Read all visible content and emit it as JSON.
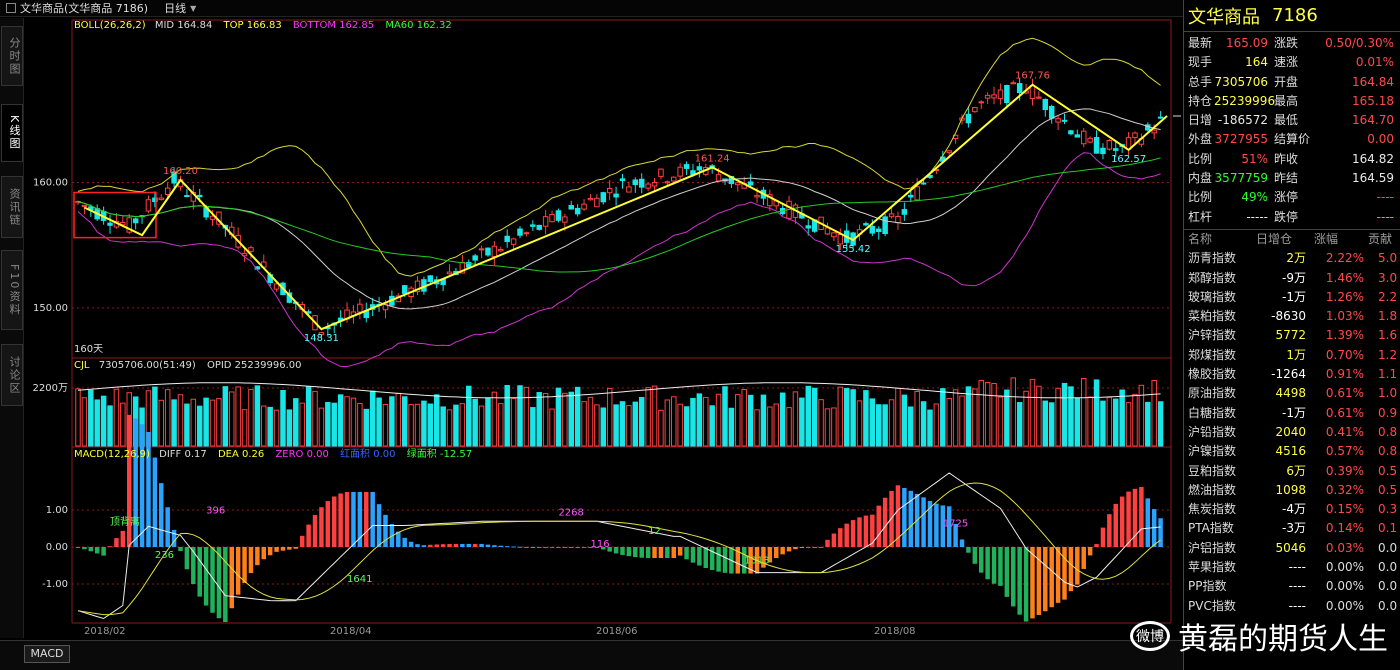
{
  "titlebar": {
    "title": "文华商品(文华商品 7186)",
    "period": "日线"
  },
  "left_tabs": [
    {
      "label": "分时图"
    },
    {
      "label": "K线图"
    },
    {
      "label": "资讯链"
    },
    {
      "label": "F10资料"
    },
    {
      "label": "讨论区"
    }
  ],
  "main_indicator": {
    "name": "BOLL(26,26,2)",
    "mid": "MID 164.84",
    "top": "TOP 166.83",
    "bottom": "BOTTOM 162.85",
    "ma60": "MA60 162.32"
  },
  "price_axis": {
    "labels": [
      "160.00",
      "150.00"
    ],
    "ticks": [
      160,
      150
    ],
    "min": 146,
    "max": 172
  },
  "period_label": "160天",
  "price_annotations": [
    {
      "text": "160.20",
      "color": "#ff5555"
    },
    {
      "text": "148.31",
      "color": "#55ffff"
    },
    {
      "text": "161.24",
      "color": "#ff5555"
    },
    {
      "text": "155.42",
      "color": "#55ffff"
    },
    {
      "text": "167.76",
      "color": "#ff5555"
    },
    {
      "text": "162.57",
      "color": "#55ffff"
    }
  ],
  "volume_header": {
    "name": "CJL",
    "value": "7305706.00(51:49)",
    "opid": "OPID 25239996.00"
  },
  "volume_axis_label": "2200万",
  "macd_header": {
    "name": "MACD(12,26,9)",
    "diff": "DIFF 0.17",
    "dea": "DEA 0.26",
    "zero": "ZERO 0.00",
    "red_area": "红面积 0.00",
    "green_area": "绿面积 -12.57"
  },
  "macd_axis": {
    "labels": [
      "1.00",
      "0.00",
      "-1.00"
    ]
  },
  "macd_annotations": [
    {
      "text": "顶背离",
      "color": "#55ff55"
    },
    {
      "text": "396",
      "color": "#ff55ff"
    },
    {
      "text": "236",
      "color": "#55ff55"
    },
    {
      "text": "1641",
      "color": "#55ff55"
    },
    {
      "text": "2268",
      "color": "#ff55ff"
    },
    {
      "text": "116",
      "color": "#ff55ff"
    },
    {
      "text": "12",
      "color": "#55ff55"
    },
    {
      "text": "1313",
      "color": "#55ff55"
    },
    {
      "text": "1725",
      "color": "#ff55ff"
    }
  ],
  "dates": [
    "2018/02",
    "2018/04",
    "2018/06",
    "2018/08"
  ],
  "bottom_tab": "MACD",
  "quote": {
    "name": "文华商品",
    "code": "7186",
    "rows": [
      {
        "l1": "最新",
        "v1": "165.09",
        "c1": "red",
        "l2": "涨跌",
        "v2": "0.50/0.30%",
        "c2": "red"
      },
      {
        "l1": "现手",
        "v1": "164",
        "c1": "yel",
        "l2": "速涨",
        "v2": "0.01%",
        "c2": "red"
      },
      {
        "l1": "总手",
        "v1": "7305706",
        "c1": "yel",
        "l2": "开盘",
        "v2": "164.84",
        "c2": "red"
      },
      {
        "l1": "持仓",
        "v1": "25239996",
        "c1": "yel",
        "l2": "最高",
        "v2": "165.18",
        "c2": "red"
      },
      {
        "l1": "日增",
        "v1": "-186572",
        "c1": "wht",
        "l2": "最低",
        "v2": "164.70",
        "c2": "red"
      },
      {
        "l1": "外盘",
        "v1": "3727955",
        "c1": "red",
        "l2": "结算价",
        "v2": "0.00",
        "c2": "red"
      },
      {
        "l1": "比例",
        "v1": "51%",
        "c1": "red",
        "l2": "昨收",
        "v2": "164.82",
        "c2": "wht"
      },
      {
        "l1": "内盘",
        "v1": "3577759",
        "c1": "grn",
        "l2": "昨结",
        "v2": "164.59",
        "c2": "wht"
      },
      {
        "l1": "比例",
        "v1": "49%",
        "c1": "grn",
        "l2": "涨停",
        "v2": "----",
        "c2": "red"
      },
      {
        "l1": "杠杆",
        "v1": "-----",
        "c1": "wht",
        "l2": "跌停",
        "v2": "----",
        "c2": "grn"
      }
    ]
  },
  "sector_table": {
    "headers": [
      "名称",
      "日增仓",
      "涨幅",
      "贡献"
    ],
    "rows": [
      {
        "name": "沥青指数",
        "chg": "2万",
        "pct": "2.22%",
        "contrib": "5.0"
      },
      {
        "name": "郑醇指数",
        "chg": "-9万",
        "pct": "1.46%",
        "contrib": "3.0"
      },
      {
        "name": "玻璃指数",
        "chg": "-1万",
        "pct": "1.26%",
        "contrib": "2.2"
      },
      {
        "name": "菜粕指数",
        "chg": "-8630",
        "pct": "1.03%",
        "contrib": "1.8"
      },
      {
        "name": "沪锌指数",
        "chg": "5772",
        "pct": "1.39%",
        "contrib": "1.6"
      },
      {
        "name": "郑煤指数",
        "chg": "1万",
        "pct": "0.70%",
        "contrib": "1.2"
      },
      {
        "name": "橡胶指数",
        "chg": "-1264",
        "pct": "0.91%",
        "contrib": "1.1"
      },
      {
        "name": "原油指数",
        "chg": "4498",
        "pct": "0.61%",
        "contrib": "1.0"
      },
      {
        "name": "白糖指数",
        "chg": "-1万",
        "pct": "0.61%",
        "contrib": "0.9"
      },
      {
        "name": "沪铅指数",
        "chg": "2040",
        "pct": "0.41%",
        "contrib": "0.8"
      },
      {
        "name": "沪镍指数",
        "chg": "4516",
        "pct": "0.57%",
        "contrib": "0.8"
      },
      {
        "name": "豆粕指数",
        "chg": "6万",
        "pct": "0.39%",
        "contrib": "0.5"
      },
      {
        "name": "燃油指数",
        "chg": "1098",
        "pct": "0.32%",
        "contrib": "0.5"
      },
      {
        "name": "焦炭指数",
        "chg": "-4万",
        "pct": "0.15%",
        "contrib": "0.3"
      },
      {
        "name": "PTA指数",
        "chg": "-3万",
        "pct": "0.14%",
        "contrib": "0.1"
      },
      {
        "name": "沪铝指数",
        "chg": "5046",
        "pct": "0.03%",
        "contrib": "0.0"
      },
      {
        "name": "苹果指数",
        "chg": "----",
        "pct": "0.00%",
        "contrib": "0.0"
      },
      {
        "name": "PP指数",
        "chg": "----",
        "pct": "0.00%",
        "contrib": "0.0"
      },
      {
        "name": "PVC指数",
        "chg": "----",
        "pct": "0.00%",
        "contrib": "0.0"
      }
    ]
  },
  "watermark": {
    "logo": "微博",
    "text": "黄磊的期货人生"
  },
  "colors": {
    "up": "#ff4040",
    "down": "#19e6e6",
    "yellow": "#ffff30",
    "green": "#22cc22",
    "magenta": "#cc33cc",
    "orange": "#ff7f1a",
    "blue": "#2aa3ff"
  }
}
